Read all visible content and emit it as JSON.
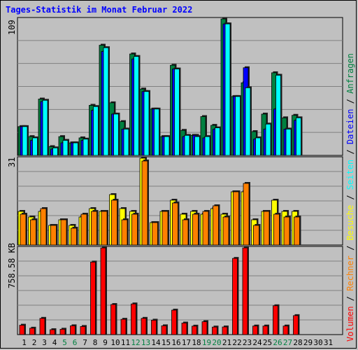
{
  "title": "Tages-Statistik im Monat Februar 2022",
  "axis_labels": {
    "top_max": "109",
    "middle_max": "31",
    "bottom_max": "758.58 KB"
  },
  "legend": {
    "items": [
      {
        "label": "Volumen",
        "color": "#ff0000"
      },
      {
        "label": "Rechner",
        "color": "#ff8000"
      },
      {
        "label": "Besuche",
        "color": "#ffff00"
      },
      {
        "label": "Seiten",
        "color": "#00ffff"
      },
      {
        "label": "Dateien",
        "color": "#0000ff"
      },
      {
        "label": "Anfragen",
        "color": "#008040"
      }
    ],
    "separator": " / "
  },
  "colors": {
    "background": "#c0c0c0",
    "anfragen": "#008040",
    "dateien": "#0000ff",
    "seiten": "#00ffff",
    "besuche": "#ffff00",
    "rechner": "#ff8000",
    "volumen": "#ff0000",
    "weekday_label": "#000000",
    "weekend_label": "#008040",
    "title": "#0000ff"
  },
  "chart_data": [
    {
      "type": "bar",
      "categories": [
        "1",
        "2",
        "3",
        "4",
        "5",
        "6",
        "7",
        "8",
        "9",
        "10",
        "11",
        "12",
        "13",
        "14",
        "15",
        "16",
        "17",
        "18",
        "19",
        "20",
        "21",
        "22",
        "23",
        "24",
        "25",
        "26",
        "27",
        "28",
        "29",
        "30",
        "31"
      ],
      "ylim": [
        0,
        109
      ],
      "series": [
        {
          "name": "Anfragen",
          "values": [
            23,
            15,
            45,
            7,
            15,
            10,
            14,
            40,
            88,
            42,
            27,
            81,
            53,
            37,
            15,
            72,
            20,
            16,
            31,
            24,
            109,
            47,
            58,
            19,
            33,
            66,
            30,
            32,
            0,
            0,
            0
          ]
        },
        {
          "name": "Dateien",
          "values": [
            23,
            12,
            43,
            5,
            10,
            10,
            12,
            36,
            83,
            33,
            21,
            77,
            51,
            37,
            15,
            69,
            15,
            16,
            14,
            21,
            105,
            47,
            70,
            13,
            21,
            37,
            21,
            28,
            0,
            0,
            0
          ]
        },
        {
          "name": "Seiten",
          "values": [
            23,
            14,
            44,
            6,
            12,
            10,
            13,
            39,
            86,
            33,
            21,
            79,
            51,
            37,
            15,
            69,
            16,
            15,
            15,
            22,
            105,
            47,
            54,
            14,
            25,
            64,
            21,
            30,
            0,
            0,
            0
          ]
        }
      ]
    },
    {
      "type": "bar",
      "categories": [
        "1",
        "2",
        "3",
        "4",
        "5",
        "6",
        "7",
        "8",
        "9",
        "10",
        "11",
        "12",
        "13",
        "14",
        "15",
        "16",
        "17",
        "18",
        "19",
        "20",
        "21",
        "22",
        "23",
        "24",
        "25",
        "26",
        "27",
        "28",
        "29",
        "30",
        "31"
      ],
      "ylim": [
        0,
        31
      ],
      "series": [
        {
          "name": "Besuche",
          "values": [
            12,
            10,
            12,
            7,
            9,
            7,
            10,
            13,
            12,
            18,
            13,
            12,
            31,
            8,
            12,
            16,
            11,
            12,
            11,
            13,
            11,
            19,
            19,
            9,
            12,
            16,
            12,
            12,
            0,
            0,
            0
          ]
        },
        {
          "name": "Rechner",
          "values": [
            11,
            9,
            13,
            7,
            9,
            6,
            11,
            12,
            12,
            16,
            9,
            11,
            30,
            8,
            12,
            15,
            9,
            11,
            12,
            14,
            10,
            19,
            22,
            7,
            12,
            11,
            10,
            10,
            0,
            0,
            0
          ]
        }
      ]
    },
    {
      "type": "bar",
      "categories": [
        "1",
        "2",
        "3",
        "4",
        "5",
        "6",
        "7",
        "8",
        "9",
        "10",
        "11",
        "12",
        "13",
        "14",
        "15",
        "16",
        "17",
        "18",
        "19",
        "20",
        "21",
        "22",
        "23",
        "24",
        "25",
        "26",
        "27",
        "28",
        "29",
        "30",
        "31"
      ],
      "ylim": [
        0,
        758.58
      ],
      "ylabel": "KB",
      "series": [
        {
          "name": "Volumen",
          "values": [
            82,
            56,
            142,
            43,
            47,
            77,
            71,
            634,
            758,
            263,
            134,
            268,
            142,
            126,
            77,
            214,
            101,
            74,
            113,
            66,
            67,
            666,
            758,
            75,
            75,
            252,
            75,
            166,
            0,
            0,
            0
          ]
        }
      ]
    }
  ]
}
